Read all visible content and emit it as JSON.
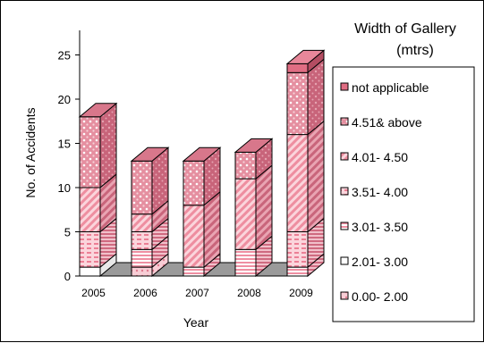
{
  "chart_data": {
    "type": "bar",
    "stacked": true,
    "three_d": true,
    "title": "",
    "xlabel": "Year",
    "ylabel": "No. of Accidents",
    "ylim": [
      0,
      25
    ],
    "yticks": [
      0,
      5,
      10,
      15,
      20,
      25
    ],
    "categories": [
      "2005",
      "2006",
      "2007",
      "2008",
      "2009"
    ],
    "legend_title": "Width of Gallery (mtrs)",
    "legend_title_lines": [
      "Width of Gallery",
      "(mtrs)"
    ],
    "legend_position": "right",
    "series": [
      {
        "name": "0.00- 2.00",
        "values": [
          0,
          1,
          0,
          0,
          0
        ],
        "color": "#f4b6c2",
        "pattern": "light-dots"
      },
      {
        "name": "2.01- 3.00",
        "values": [
          1,
          0,
          0,
          0,
          0
        ],
        "color": "#ffffff",
        "pattern": "none"
      },
      {
        "name": "3.01- 3.50",
        "values": [
          0,
          2,
          1,
          3,
          1
        ],
        "color": "#f4a6b4",
        "pattern": "horizontal"
      },
      {
        "name": "3.51- 4.00",
        "values": [
          4,
          2,
          0,
          0,
          4
        ],
        "color": "#f4a6b4",
        "pattern": "dash-h"
      },
      {
        "name": "4.01- 4.50",
        "values": [
          5,
          2,
          7,
          8,
          11
        ],
        "color": "#f4a6b4",
        "pattern": "diagonal"
      },
      {
        "name": "4.51& above",
        "values": [
          8,
          6,
          5,
          3,
          7
        ],
        "color": "#e28a9b",
        "pattern": "dots"
      },
      {
        "name": "not applicable",
        "values": [
          0,
          0,
          0,
          0,
          1
        ],
        "color": "#e06d83",
        "pattern": "solid"
      }
    ],
    "grid": false
  }
}
